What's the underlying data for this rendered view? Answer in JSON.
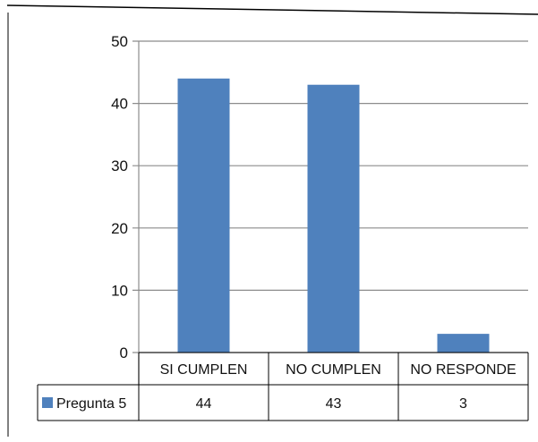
{
  "chart_data": {
    "type": "bar",
    "categories": [
      "SI CUMPLEN",
      "NO CUMPLEN",
      "NO RESPONDE"
    ],
    "series": [
      {
        "name": "Pregunta 5",
        "values": [
          44,
          43,
          3
        ],
        "color": "#4f81bd"
      }
    ],
    "ylim": [
      0,
      50
    ],
    "yticks": [
      "0",
      "10",
      "20",
      "30",
      "40",
      "50"
    ],
    "grid": true,
    "data_table": true,
    "title": "",
    "xlabel": "",
    "ylabel": ""
  }
}
